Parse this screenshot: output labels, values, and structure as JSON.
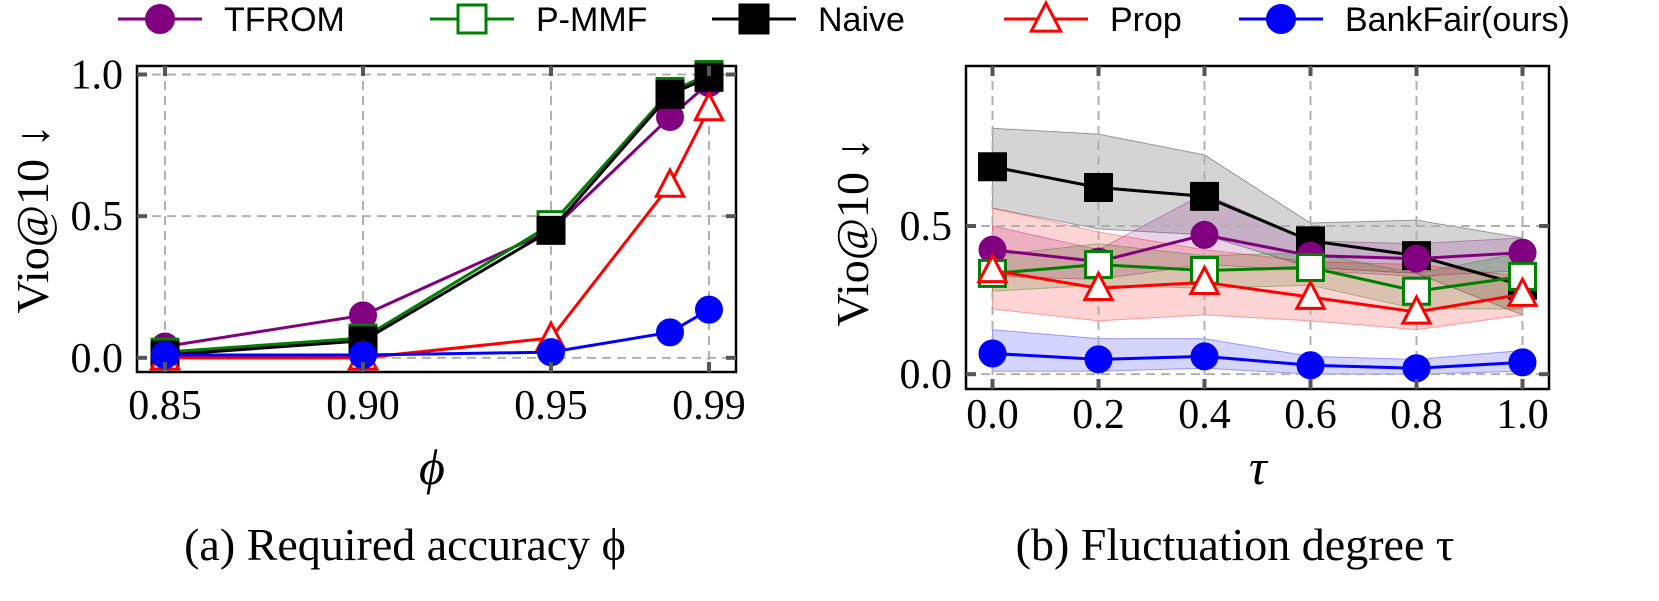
{
  "legend": [
    {
      "key": "tfrom",
      "label": "TFROM",
      "color": "#800080",
      "marker": "circle",
      "fill": "#800080"
    },
    {
      "key": "pmmf",
      "label": "P-MMF",
      "color": "#008000",
      "marker": "square",
      "fill": "#ffffff"
    },
    {
      "key": "naive",
      "label": "Naive",
      "color": "#000000",
      "marker": "square",
      "fill": "#000000"
    },
    {
      "key": "prop",
      "label": "Prop",
      "color": "#ff0000",
      "marker": "triangle",
      "fill": "#ffffff"
    },
    {
      "key": "bankfair",
      "label": "BankFair(ours)",
      "color": "#0000ff",
      "marker": "circle",
      "fill": "#0000ff"
    }
  ],
  "chart_data": [
    {
      "type": "line",
      "id": "a",
      "caption": "(a) Required accuracy ϕ",
      "xlabel": "ϕ",
      "ylabel": "Vio@10 ↓",
      "categories": [
        "0.85",
        "0.90",
        "0.95",
        "0.98",
        "0.99"
      ],
      "xtick_labels": [
        "0.85",
        "0.90",
        "0.95",
        "",
        "0.99"
      ],
      "ytick_labels": [
        "0.0",
        "0.5",
        "1.0"
      ],
      "yticks": [
        0.0,
        0.5,
        1.0
      ],
      "ylim": [
        -0.05,
        1.03
      ],
      "grid": true,
      "series": [
        {
          "key": "tfrom",
          "name": "TFROM",
          "values": [
            0.04,
            0.15,
            0.45,
            0.85,
            0.97
          ]
        },
        {
          "key": "pmmf",
          "name": "P-MMF",
          "values": [
            0.02,
            0.07,
            0.47,
            0.94,
            1.0
          ]
        },
        {
          "key": "naive",
          "name": "Naive",
          "values": [
            0.01,
            0.06,
            0.45,
            0.93,
            0.99
          ]
        },
        {
          "key": "prop",
          "name": "Prop",
          "values": [
            0.0,
            0.0,
            0.07,
            0.61,
            0.88
          ]
        },
        {
          "key": "bankfair",
          "name": "BankFair(ours)",
          "values": [
            0.01,
            0.01,
            0.02,
            0.09,
            0.17
          ]
        }
      ]
    },
    {
      "type": "line",
      "id": "b",
      "caption": "(b) Fluctuation degree τ",
      "xlabel": "τ",
      "ylabel": "Vio@10 ↓",
      "x": [
        0.0,
        0.2,
        0.4,
        0.6,
        0.8,
        1.0
      ],
      "xtick_labels": [
        "0.0",
        "0.2",
        "0.4",
        "0.6",
        "0.8",
        "1.0"
      ],
      "ytick_labels": [
        "0.0",
        "0.5"
      ],
      "yticks": [
        0.0,
        0.5
      ],
      "xlim": [
        -0.05,
        1.05
      ],
      "ylim": [
        -0.05,
        1.04
      ],
      "grid": true,
      "series": [
        {
          "key": "naive",
          "name": "Naive",
          "values": [
            0.7,
            0.63,
            0.6,
            0.45,
            0.4,
            0.3
          ],
          "lower": [
            0.56,
            0.49,
            0.47,
            0.36,
            0.34,
            0.2
          ],
          "upper": [
            0.83,
            0.81,
            0.74,
            0.51,
            0.52,
            0.46
          ]
        },
        {
          "key": "tfrom",
          "name": "TFROM",
          "values": [
            0.42,
            0.38,
            0.47,
            0.4,
            0.39,
            0.41
          ],
          "lower": [
            0.33,
            0.32,
            0.37,
            0.35,
            0.33,
            0.35
          ],
          "upper": [
            0.5,
            0.42,
            0.61,
            0.45,
            0.44,
            0.46
          ]
        },
        {
          "key": "pmmf",
          "name": "P-MMF",
          "values": [
            0.34,
            0.37,
            0.35,
            0.36,
            0.28,
            0.33
          ],
          "lower": [
            0.28,
            0.3,
            0.29,
            0.3,
            0.22,
            0.22
          ],
          "upper": [
            0.4,
            0.44,
            0.4,
            0.41,
            0.34,
            0.41
          ]
        },
        {
          "key": "prop",
          "name": "Prop",
          "values": [
            0.35,
            0.29,
            0.31,
            0.26,
            0.21,
            0.27
          ],
          "lower": [
            0.22,
            0.18,
            0.2,
            0.18,
            0.15,
            0.2
          ],
          "upper": [
            0.56,
            0.48,
            0.42,
            0.38,
            0.37,
            0.33
          ]
        },
        {
          "key": "bankfair",
          "name": "BankFair(ours)",
          "values": [
            0.07,
            0.05,
            0.06,
            0.03,
            0.02,
            0.04
          ],
          "lower": [
            0.01,
            0.01,
            0.02,
            0.0,
            0.0,
            0.01
          ],
          "upper": [
            0.15,
            0.12,
            0.12,
            0.06,
            0.05,
            0.08
          ]
        }
      ]
    }
  ]
}
